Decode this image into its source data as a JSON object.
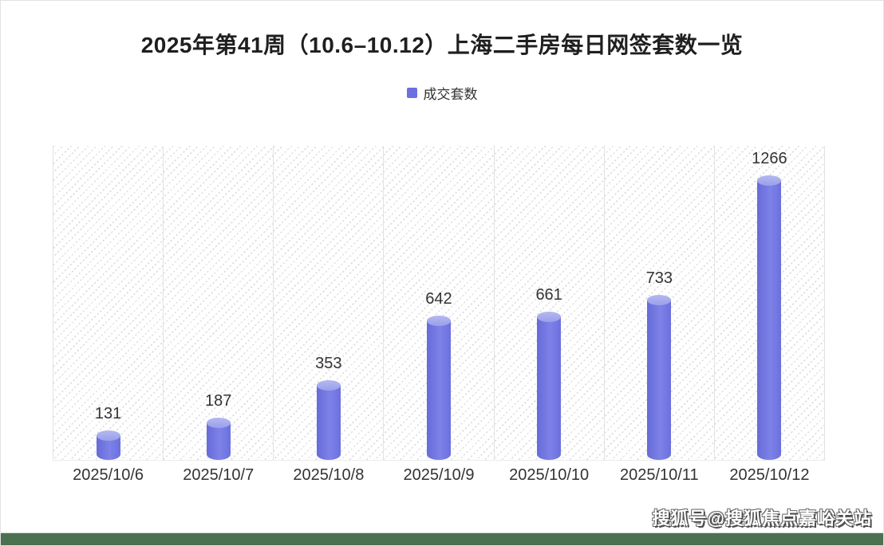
{
  "page": {
    "watermark": "搜狐号@搜狐焦点嘉峪关站",
    "footer_band_color": "#4a7150"
  },
  "chart_data": {
    "type": "bar",
    "title": "2025年第41周（10.6–10.12）上海二手房每日网签套数一览",
    "legend": [
      {
        "label": "成交套数",
        "color": "#6c71df"
      }
    ],
    "legend_position": "top-center",
    "categories": [
      "2025/10/6",
      "2025/10/7",
      "2025/10/8",
      "2025/10/9",
      "2025/10/10",
      "2025/10/11",
      "2025/10/12"
    ],
    "values": [
      131,
      187,
      353,
      642,
      661,
      733,
      1266
    ],
    "ylim": [
      0,
      1400
    ],
    "xlabel": "",
    "ylabel": "",
    "data_labels": true,
    "bar_style": "cylinder",
    "bar_color": "#6c71df",
    "bar_cap_color": "#a6aaee",
    "plot_background": "diagonal-dot-hatch",
    "grid": "vertical-column-separators",
    "y_axis_ticks_visible": false
  }
}
